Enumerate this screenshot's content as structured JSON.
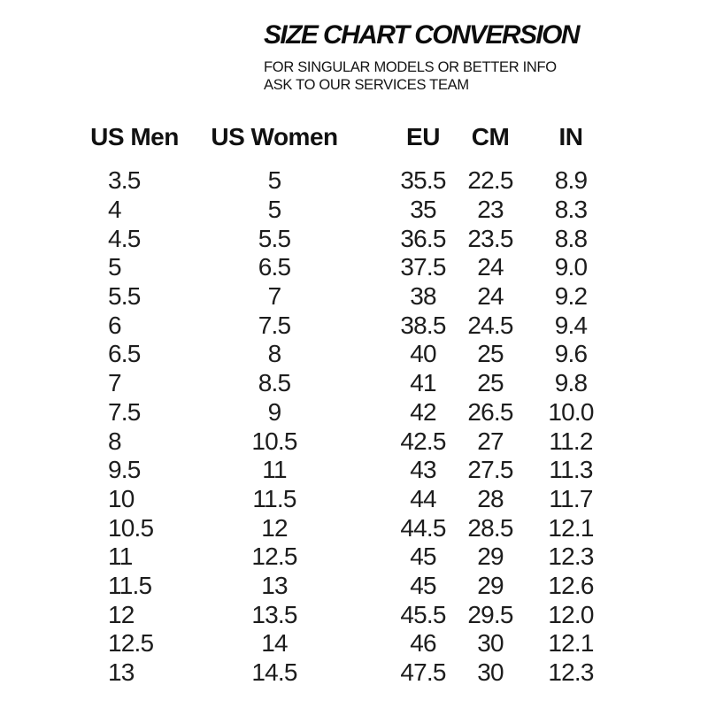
{
  "header": {
    "title": "SIZE CHART CONVERSION",
    "subtitle_line1": "FOR SINGULAR MODELS OR BETTER INFO",
    "subtitle_line2": "ASK TO OUR SERVICES TEAM"
  },
  "table": {
    "columns": [
      "US Men",
      "US Women",
      "EU",
      "CM",
      "IN"
    ],
    "rows": [
      [
        "3.5",
        "5",
        "35.5",
        "22.5",
        "8.9"
      ],
      [
        "4",
        "5",
        "35",
        "23",
        "8.3"
      ],
      [
        "4.5",
        "5.5",
        "36.5",
        "23.5",
        "8.8"
      ],
      [
        "5",
        "6.5",
        "37.5",
        "24",
        "9.0"
      ],
      [
        "5.5",
        "7",
        "38",
        "24",
        "9.2"
      ],
      [
        "6",
        "7.5",
        "38.5",
        "24.5",
        "9.4"
      ],
      [
        "6.5",
        "8",
        "40",
        "25",
        "9.6"
      ],
      [
        "7",
        "8.5",
        "41",
        "25",
        "9.8"
      ],
      [
        "7.5",
        "9",
        "42",
        "26.5",
        "10.0"
      ],
      [
        "8",
        "10.5",
        "42.5",
        "27",
        "11.2"
      ],
      [
        "9.5",
        "11",
        "43",
        "27.5",
        "11.3"
      ],
      [
        "10",
        "11.5",
        "44",
        "28",
        "11.7"
      ],
      [
        "10.5",
        "12",
        "44.5",
        "28.5",
        "12.1"
      ],
      [
        "11",
        "12.5",
        "45",
        "29",
        "12.3"
      ],
      [
        "11.5",
        "13",
        "45",
        "29",
        "12.6"
      ],
      [
        "12",
        "13.5",
        "45.5",
        "29.5",
        "12.0"
      ],
      [
        "12.5",
        "14",
        "46",
        "30",
        "12.1"
      ],
      [
        "13",
        "14.5",
        "47.5",
        "30",
        "12.3"
      ]
    ]
  },
  "colors": {
    "background": "#ffffff",
    "title_text": "#0d0d0d",
    "body_text": "#1d1d1d"
  }
}
